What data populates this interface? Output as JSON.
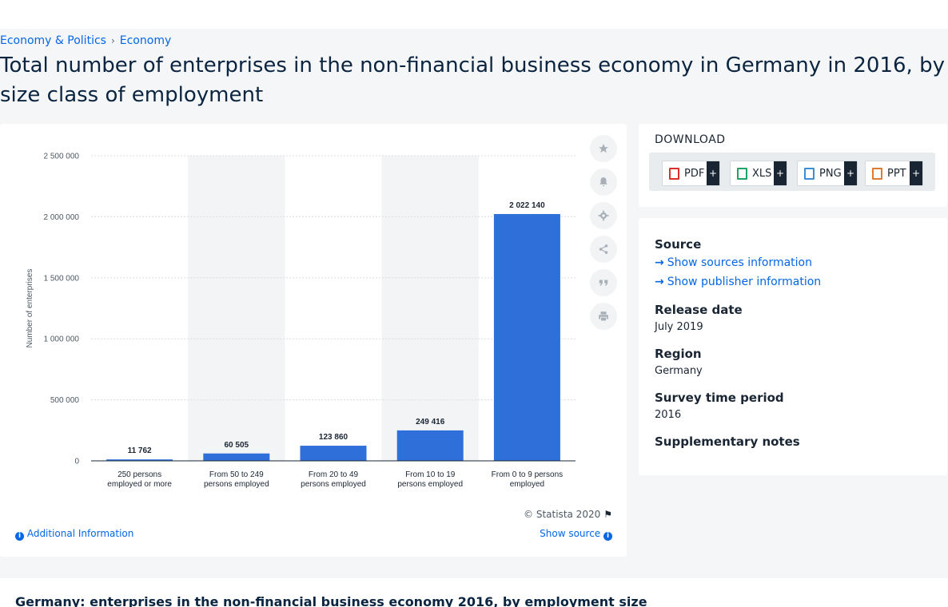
{
  "breadcrumb": {
    "item1": "Economy & Politics",
    "sep": "›",
    "item2": "Economy"
  },
  "page_title": "Total number of enterprises in the non-financial business economy in Germany in 2016, by size class of employment",
  "chart_footer": {
    "copyright": "© Statista 2020",
    "additional_info": "Additional Information",
    "show_source": "Show source"
  },
  "side_tools": [
    "star-icon",
    "bell-icon",
    "gear-icon",
    "share-icon",
    "quote-icon",
    "print-icon"
  ],
  "download": {
    "title": "DOWNLOAD",
    "buttons": [
      {
        "label": "PDF",
        "color": "#d9302c"
      },
      {
        "label": "XLS",
        "color": "#21a366"
      },
      {
        "label": "PNG",
        "color": "#3c8fd6"
      },
      {
        "label": "PPT",
        "color": "#e07a2c"
      }
    ],
    "plus": "+"
  },
  "info": {
    "source_label": "Source",
    "show_sources": "Show sources information",
    "show_publisher": "Show publisher information",
    "release_label": "Release date",
    "release_value": "July 2019",
    "region_label": "Region",
    "region_value": "Germany",
    "period_label": "Survey time period",
    "period_value": "2016",
    "notes_label": "Supplementary notes"
  },
  "bottom_title": "Germany: enterprises in the non-financial business economy 2016, by employment size",
  "chart_data": {
    "type": "bar",
    "categories": [
      [
        "250 persons",
        "employed or more"
      ],
      [
        "From 50 to 249",
        "persons employed"
      ],
      [
        "From 20 to 49",
        "persons employed"
      ],
      [
        "From 10 to 19",
        "persons employed"
      ],
      [
        "From 0 to 9 persons",
        "employed"
      ]
    ],
    "values": [
      11762,
      60505,
      123860,
      249416,
      2022140
    ],
    "value_labels": [
      "11 762",
      "60 505",
      "123 860",
      "249 416",
      "2 022 140"
    ],
    "ylabel": "Number of enterprises",
    "ylim": [
      0,
      2500000
    ],
    "yticks": [
      0,
      500000,
      1000000,
      1500000,
      2000000,
      2500000
    ],
    "ytick_labels": [
      "0",
      "500 000",
      "1 000 000",
      "1 500 000",
      "2 000 000",
      "2 500 000"
    ],
    "bar_color": "#2f6fd9",
    "band_color": "#f3f4f5",
    "grid": true
  }
}
